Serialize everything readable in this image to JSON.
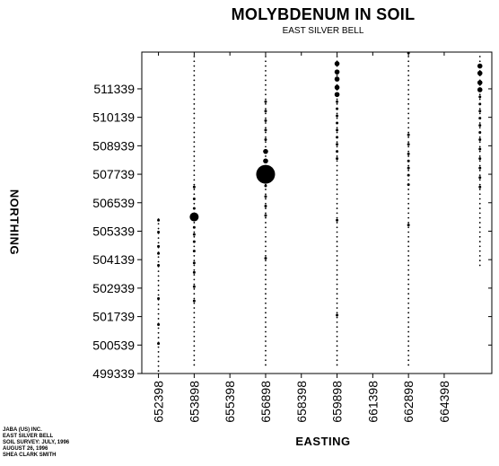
{
  "chart_data": {
    "type": "scatter",
    "title": "MOLYBDENUM IN SOIL",
    "subtitle": "EAST SILVER BELL",
    "xlabel": "EASTING",
    "ylabel": "NORTHING",
    "xlim": [
      651698,
      666398
    ],
    "ylim": [
      499339,
      512889
    ],
    "x_ticks": [
      "652398",
      "653898",
      "655398",
      "656898",
      "658398",
      "659898",
      "661398",
      "662898",
      "664398"
    ],
    "y_ticks": [
      "499339",
      "500539",
      "501739",
      "502939",
      "504139",
      "505339",
      "506539",
      "507739",
      "508939",
      "510139",
      "511339"
    ],
    "grid": false,
    "legend": "none",
    "size_classes": [
      "tiny",
      "small",
      "medium",
      "large",
      "xlarge"
    ],
    "lines": [
      {
        "easting": 652398,
        "northing_start": 499450,
        "northing_end": 506000,
        "step": 200,
        "samples": [
          {
            "northing": 500600,
            "size": "small"
          },
          {
            "northing": 501400,
            "size": "small"
          },
          {
            "northing": 502500,
            "size": "small"
          },
          {
            "northing": 503900,
            "size": "small"
          },
          {
            "northing": 504400,
            "size": "small"
          },
          {
            "northing": 504700,
            "size": "small"
          },
          {
            "northing": 505300,
            "size": "small"
          },
          {
            "northing": 505800,
            "size": "small"
          }
        ]
      },
      {
        "easting": 653898,
        "northing_start": 499700,
        "northing_end": 512850,
        "step": 200,
        "samples": [
          {
            "northing": 502400,
            "size": "small"
          },
          {
            "northing": 503000,
            "size": "small"
          },
          {
            "northing": 503600,
            "size": "small"
          },
          {
            "northing": 504000,
            "size": "small"
          },
          {
            "northing": 504500,
            "size": "small"
          },
          {
            "northing": 504900,
            "size": "small"
          },
          {
            "northing": 505200,
            "size": "small"
          },
          {
            "northing": 505500,
            "size": "small"
          },
          {
            "northing": 505940,
            "size": "large"
          },
          {
            "northing": 506300,
            "size": "small"
          },
          {
            "northing": 506700,
            "size": "small"
          },
          {
            "northing": 507200,
            "size": "small"
          }
        ]
      },
      {
        "easting": 656898,
        "northing_start": 499700,
        "northing_end": 512850,
        "step": 200,
        "samples": [
          {
            "northing": 504200,
            "size": "small"
          },
          {
            "northing": 506000,
            "size": "small"
          },
          {
            "northing": 506400,
            "size": "small"
          },
          {
            "northing": 506800,
            "size": "small"
          },
          {
            "northing": 507250,
            "size": "small"
          },
          {
            "northing": 507739,
            "size": "xlarge"
          },
          {
            "northing": 508300,
            "size": "medium"
          },
          {
            "northing": 508700,
            "size": "medium"
          },
          {
            "northing": 509200,
            "size": "small"
          },
          {
            "northing": 509600,
            "size": "small"
          },
          {
            "northing": 510000,
            "size": "small"
          },
          {
            "northing": 510400,
            "size": "small"
          },
          {
            "northing": 510800,
            "size": "small"
          }
        ]
      },
      {
        "easting": 659898,
        "northing_start": 499700,
        "northing_end": 512850,
        "step": 200,
        "samples": [
          {
            "northing": 501800,
            "size": "small"
          },
          {
            "northing": 505800,
            "size": "small"
          },
          {
            "northing": 508400,
            "size": "small"
          },
          {
            "northing": 508700,
            "size": "small"
          },
          {
            "northing": 509000,
            "size": "small"
          },
          {
            "northing": 509300,
            "size": "small"
          },
          {
            "northing": 509600,
            "size": "small"
          },
          {
            "northing": 509900,
            "size": "small"
          },
          {
            "northing": 510200,
            "size": "small"
          },
          {
            "northing": 510500,
            "size": "small"
          },
          {
            "northing": 510800,
            "size": "small"
          },
          {
            "northing": 511100,
            "size": "medium"
          },
          {
            "northing": 511400,
            "size": "medium"
          },
          {
            "northing": 511750,
            "size": "medium"
          },
          {
            "northing": 512050,
            "size": "medium"
          },
          {
            "northing": 512400,
            "size": "medium"
          }
        ]
      },
      {
        "easting": 662898,
        "northing_start": 499700,
        "northing_end": 512850,
        "step": 200,
        "samples": [
          {
            "northing": 505600,
            "size": "small"
          },
          {
            "northing": 507300,
            "size": "small"
          },
          {
            "northing": 507700,
            "size": "small"
          },
          {
            "northing": 508000,
            "size": "small"
          },
          {
            "northing": 508300,
            "size": "small"
          },
          {
            "northing": 508600,
            "size": "small"
          },
          {
            "northing": 509000,
            "size": "small"
          },
          {
            "northing": 509400,
            "size": "small"
          },
          {
            "northing": 512850,
            "size": "small"
          }
        ]
      },
      {
        "easting": 665898,
        "northing_start": 503900,
        "northing_end": 512850,
        "step": 200,
        "samples": [
          {
            "northing": 507200,
            "size": "small"
          },
          {
            "northing": 507600,
            "size": "small"
          },
          {
            "northing": 508000,
            "size": "small"
          },
          {
            "northing": 508400,
            "size": "small"
          },
          {
            "northing": 508800,
            "size": "small"
          },
          {
            "northing": 509200,
            "size": "small"
          },
          {
            "northing": 509500,
            "size": "small"
          },
          {
            "northing": 509800,
            "size": "small"
          },
          {
            "northing": 510100,
            "size": "small"
          },
          {
            "northing": 510400,
            "size": "small"
          },
          {
            "northing": 510700,
            "size": "small"
          },
          {
            "northing": 511000,
            "size": "small"
          },
          {
            "northing": 511300,
            "size": "medium"
          },
          {
            "northing": 511600,
            "size": "medium"
          },
          {
            "northing": 512000,
            "size": "medium"
          },
          {
            "northing": 512300,
            "size": "medium"
          }
        ]
      }
    ]
  },
  "footer": {
    "lines": [
      "JABA (US) INC.",
      "EAST SILVER BELL",
      "SOIL SURVEY: JULY, 1996",
      "AUGUST 26, 1996",
      "SHEA CLARK SMITH"
    ]
  }
}
